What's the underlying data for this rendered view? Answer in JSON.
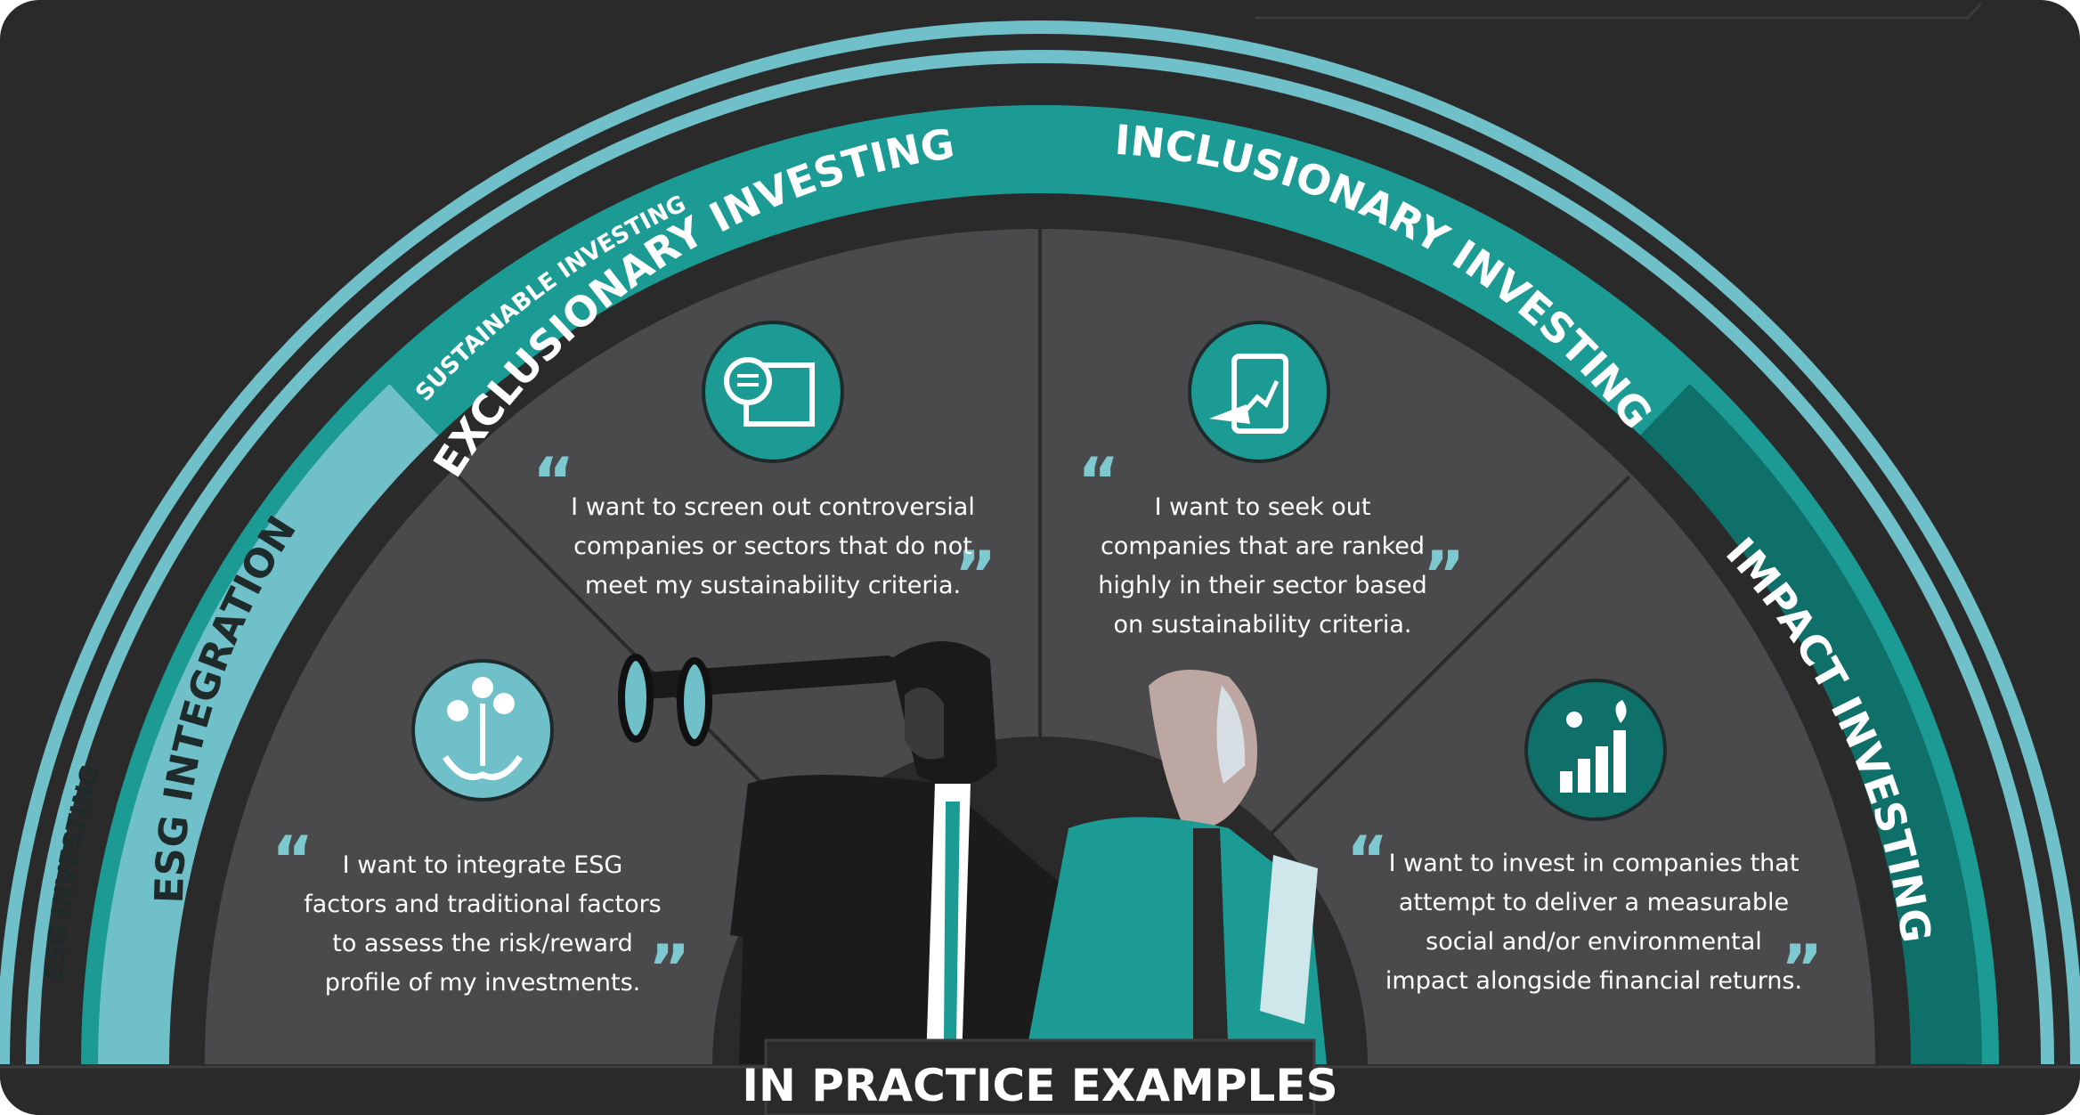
{
  "rings": {
    "outer": "ESG INVESTING",
    "middle": "SUSTAINABLE INVESTING"
  },
  "segments": [
    {
      "title": "ESG INTEGRATION",
      "icon": "plant-coins-hands-icon",
      "quote": [
        "I want to integrate ESG",
        "factors and traditional factors",
        "to assess the risk/reward",
        "profile of my investments."
      ]
    },
    {
      "title": "EXCLUSIONARY INVESTING",
      "icon": "document-screening-folder-icon",
      "quote": [
        "I want to screen out controversial",
        "companies or sectors that do not",
        "meet my sustainability criteria."
      ]
    },
    {
      "title": "INCLUSIONARY INVESTING",
      "icon": "tablet-growth-chart-icon",
      "quote": [
        "I want to seek out",
        "companies that are ranked",
        "highly in their sector based",
        "on sustainability criteria."
      ]
    },
    {
      "title": "IMPACT INVESTING",
      "icon": "climbing-person-growth-icon",
      "quote": [
        "I want to invest in companies that",
        "attempt to deliver a measurable",
        "social and/or environmental",
        "impact alongside financial returns."
      ]
    }
  ],
  "footer": {
    "label": "IN PRACTICE EXAMPLES"
  },
  "colors": {
    "background": "#2a2a2b",
    "panel": "#4a4a4c",
    "light_teal": "#6fc0c9",
    "teal": "#1c9a94",
    "dark_teal": "#0f6f69",
    "quote_mark": "#7ec8cf",
    "text": "#ffffff"
  }
}
